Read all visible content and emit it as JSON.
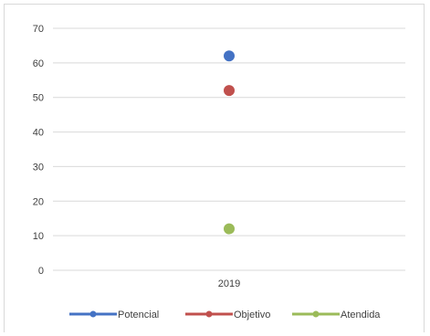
{
  "chart_data": {
    "type": "scatter",
    "categories": [
      "2019"
    ],
    "ylim": [
      0,
      70
    ],
    "yticks": [
      0,
      10,
      20,
      30,
      40,
      50,
      60,
      70
    ],
    "grid": true,
    "legend_position": "bottom",
    "series": [
      {
        "name": "Potencial",
        "values": [
          62
        ],
        "color": "#4472c4"
      },
      {
        "name": "Objetivo",
        "values": [
          52
        ],
        "color": "#c0504d"
      },
      {
        "name": "Atendida",
        "values": [
          12
        ],
        "color": "#9bbb59"
      }
    ]
  }
}
